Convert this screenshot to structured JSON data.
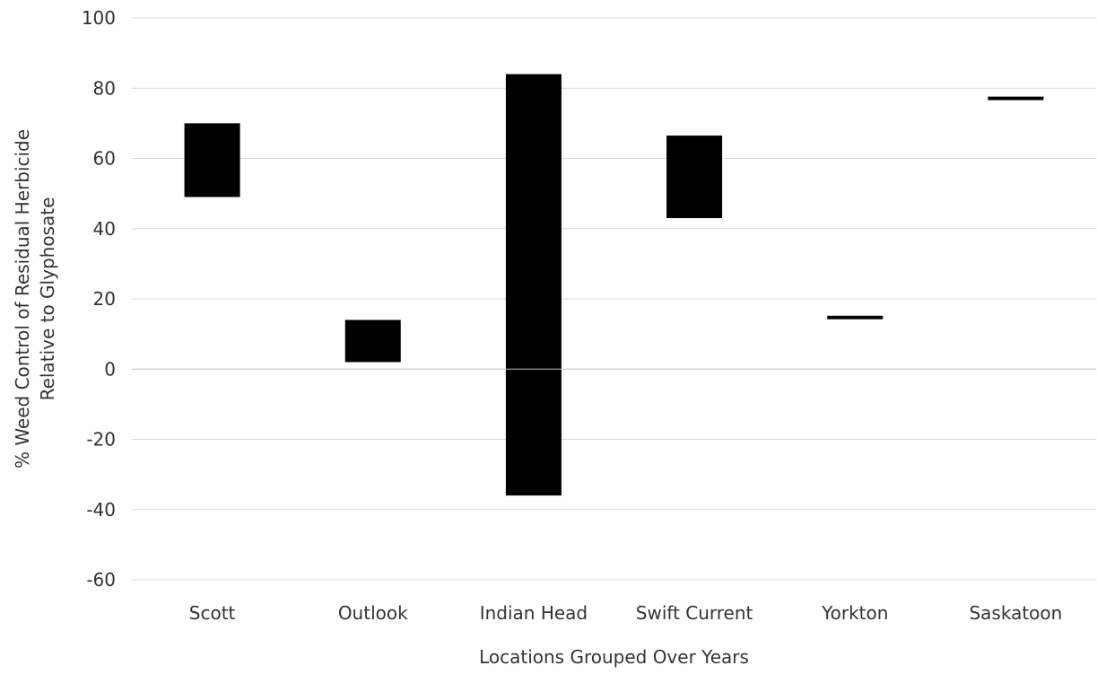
{
  "chart_data": {
    "type": "bar",
    "subtype": "floating-range",
    "title": "",
    "xlabel": "Locations Grouped Over Years",
    "ylabel_lines": [
      "% Weed Control of Residual Herbicide",
      "Relative to Glyphosate"
    ],
    "categories": [
      "Scott",
      "Outlook",
      "Indian Head",
      "Swift Current",
      "Yorkton",
      "Saskatoon"
    ],
    "series": [
      {
        "ranges": [
          [
            49,
            70
          ],
          [
            2,
            14
          ],
          [
            -36,
            84
          ],
          [
            43,
            66.5
          ],
          [
            14.2,
            15.2
          ],
          [
            76.6,
            77.6
          ]
        ]
      }
    ],
    "ylim": [
      -60,
      100
    ],
    "yticks": [
      "-60",
      "-40",
      "-20",
      "0",
      "20",
      "40",
      "60",
      "80",
      "100"
    ],
    "grid": true,
    "legend": "none",
    "colors": {
      "bar": "#000000",
      "grid": "#d9d9d9",
      "axis": "#bfbfbf",
      "text": "#333333"
    }
  }
}
